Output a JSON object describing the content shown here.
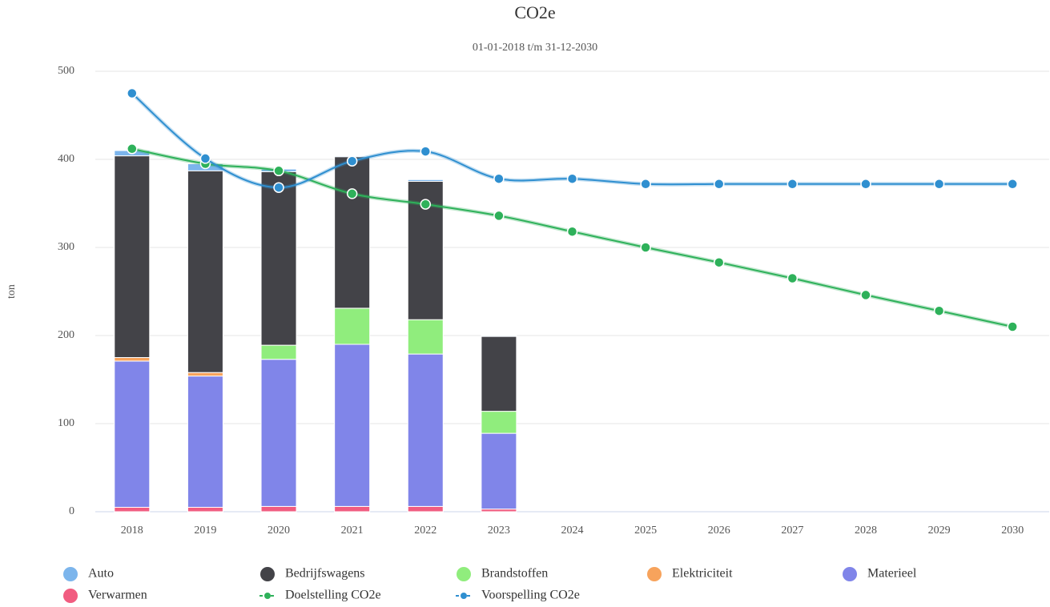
{
  "chart_data": {
    "type": "bar",
    "title": "CO2e",
    "subtitle": "01-01-2018 t/m 31-12-2030",
    "y_label": "ton",
    "categories": [
      "2018",
      "2019",
      "2020",
      "2021",
      "2022",
      "2023",
      "2024",
      "2025",
      "2026",
      "2027",
      "2028",
      "2029",
      "2030"
    ],
    "ylim": [
      0,
      500
    ],
    "yticks": [
      0,
      100,
      200,
      300,
      400,
      500
    ],
    "grid": true,
    "stacked": true,
    "legend": "bottom",
    "series": [
      {
        "name": "Auto",
        "type": "column",
        "color": "#7cb5ec",
        "values": [
          6,
          8,
          3,
          1,
          2,
          1,
          null,
          null,
          null,
          null,
          null,
          null,
          null
        ]
      },
      {
        "name": "Bedrijfswagens",
        "type": "column",
        "color": "#434348",
        "values": [
          229,
          229,
          197,
          172,
          157,
          85,
          null,
          null,
          null,
          null,
          null,
          null,
          null
        ]
      },
      {
        "name": "Brandstoffen",
        "type": "column",
        "color": "#90ed7d",
        "values": [
          0,
          0,
          16,
          41,
          39,
          25,
          null,
          null,
          null,
          null,
          null,
          null,
          null
        ]
      },
      {
        "name": "Elektriciteit",
        "type": "column",
        "color": "#f7a35c",
        "values": [
          4,
          4,
          0,
          0,
          0,
          0,
          null,
          null,
          null,
          null,
          null,
          null,
          null
        ]
      },
      {
        "name": "Materieel",
        "type": "column",
        "color": "#8085e9",
        "values": [
          166,
          149,
          167,
          184,
          173,
          86,
          null,
          null,
          null,
          null,
          null,
          null,
          null
        ]
      },
      {
        "name": "Verwarmen",
        "type": "column",
        "color": "#f15c80",
        "values": [
          5,
          5,
          6,
          6,
          6,
          3,
          null,
          null,
          null,
          null,
          null,
          null,
          null
        ]
      },
      {
        "name": "Doelstelling CO2e",
        "type": "line",
        "color": "#2eb15a",
        "values": [
          412,
          395,
          387,
          361,
          349,
          336,
          318,
          300,
          283,
          265,
          246,
          228,
          210
        ]
      },
      {
        "name": "Voorspelling CO2e",
        "type": "line",
        "color": "#2f8fd0",
        "values": [
          475,
          401,
          368,
          398,
          409,
          378,
          378,
          372,
          372,
          372,
          372,
          372,
          372
        ]
      }
    ]
  }
}
